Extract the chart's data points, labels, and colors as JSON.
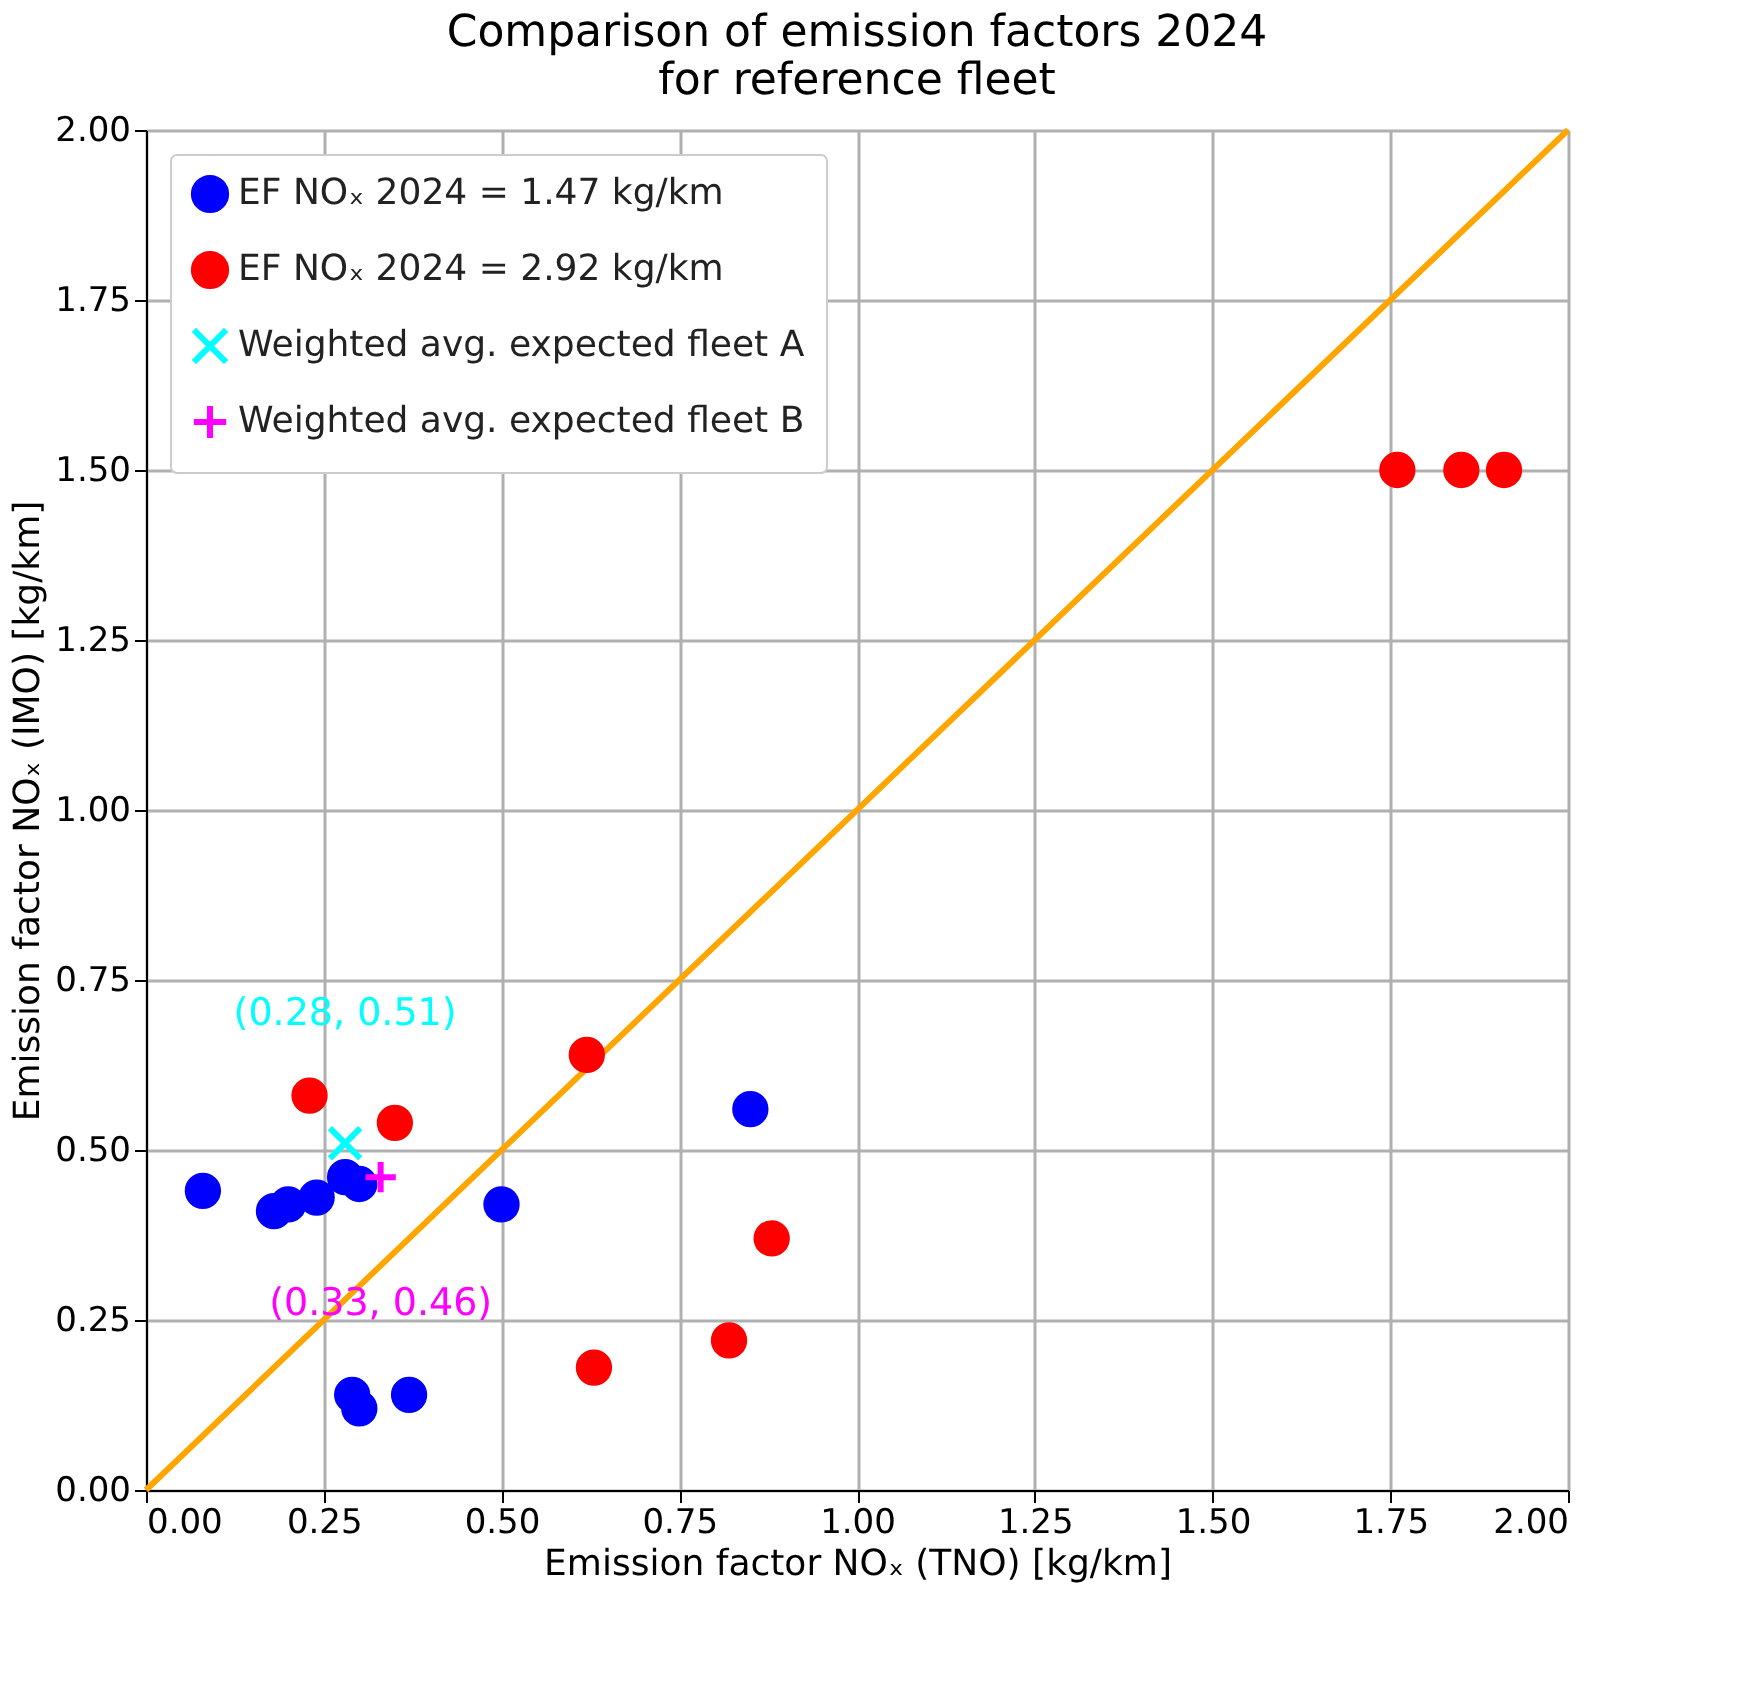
{
  "chart_data": {
    "type": "scatter",
    "title": "Comparison of emission factors 2024\nfor reference fleet",
    "xlabel": "Emission factor NOₓ (TNO) [kg/km]",
    "ylabel": "Emission factor NOₓ (IMO) [kg/km]",
    "xlim": [
      0,
      2
    ],
    "ylim": [
      0,
      2
    ],
    "xticks": [
      {
        "value": 0,
        "label": "0.00"
      },
      {
        "value": 0.25,
        "label": "0.25"
      },
      {
        "value": 0.5,
        "label": "0.50"
      },
      {
        "value": 0.75,
        "label": "0.75"
      },
      {
        "value": 1,
        "label": "1.00"
      },
      {
        "value": 1.25,
        "label": "1.25"
      },
      {
        "value": 1.5,
        "label": "1.50"
      },
      {
        "value": 1.75,
        "label": "1.75"
      },
      {
        "value": 2,
        "label": "2.00"
      }
    ],
    "yticks": [
      {
        "value": 0,
        "label": "0.00"
      },
      {
        "value": 0.25,
        "label": "0.25"
      },
      {
        "value": 0.5,
        "label": "0.50"
      },
      {
        "value": 0.75,
        "label": "0.75"
      },
      {
        "value": 1,
        "label": "1.00"
      },
      {
        "value": 1.25,
        "label": "1.25"
      },
      {
        "value": 1.5,
        "label": "1.50"
      },
      {
        "value": 1.75,
        "label": "1.75"
      },
      {
        "value": 2,
        "label": "2.00"
      }
    ],
    "grid": true,
    "legend": "top left",
    "series": [
      {
        "name": "EF NOₓ 2024 = 1.47 kg/km",
        "color": "#0000ff",
        "marker": "circle",
        "x": [
          0.08,
          0.18,
          0.2,
          0.24,
          0.28,
          0.3,
          0.5,
          0.85,
          0.29,
          0.3,
          0.37
        ],
        "values": [
          0.44,
          0.41,
          0.42,
          0.43,
          0.46,
          0.45,
          0.42,
          0.56,
          0.14,
          0.12,
          0.14
        ]
      },
      {
        "name": "EF NOₓ 2024 = 2.92 kg/km",
        "color": "#ff0000",
        "marker": "circle",
        "x": [
          0.23,
          0.35,
          0.62,
          0.88,
          0.82,
          0.63,
          1.76,
          1.85,
          1.91
        ],
        "values": [
          0.58,
          0.54,
          0.64,
          0.37,
          0.22,
          0.18,
          1.5,
          1.5,
          1.5
        ]
      },
      {
        "name": "Weighted avg. expected fleet A",
        "color": "#00ffff",
        "marker": "cross",
        "x": [
          0.28
        ],
        "values": [
          0.51
        ]
      },
      {
        "name": "Weighted avg. expected fleet B",
        "color": "#ff00ff",
        "marker": "plus",
        "x": [
          0.33
        ],
        "values": [
          0.46
        ]
      },
      {
        "type": "line",
        "color": "#ffa500",
        "x": [
          0,
          2
        ],
        "values": [
          0,
          2
        ]
      }
    ],
    "annotations": [
      {
        "text": "(0.28, 0.51)",
        "x": 0.28,
        "y": 0.51
      },
      {
        "text": "(0.33, 0.46)",
        "x": 0.33,
        "y": 0.46
      }
    ]
  }
}
